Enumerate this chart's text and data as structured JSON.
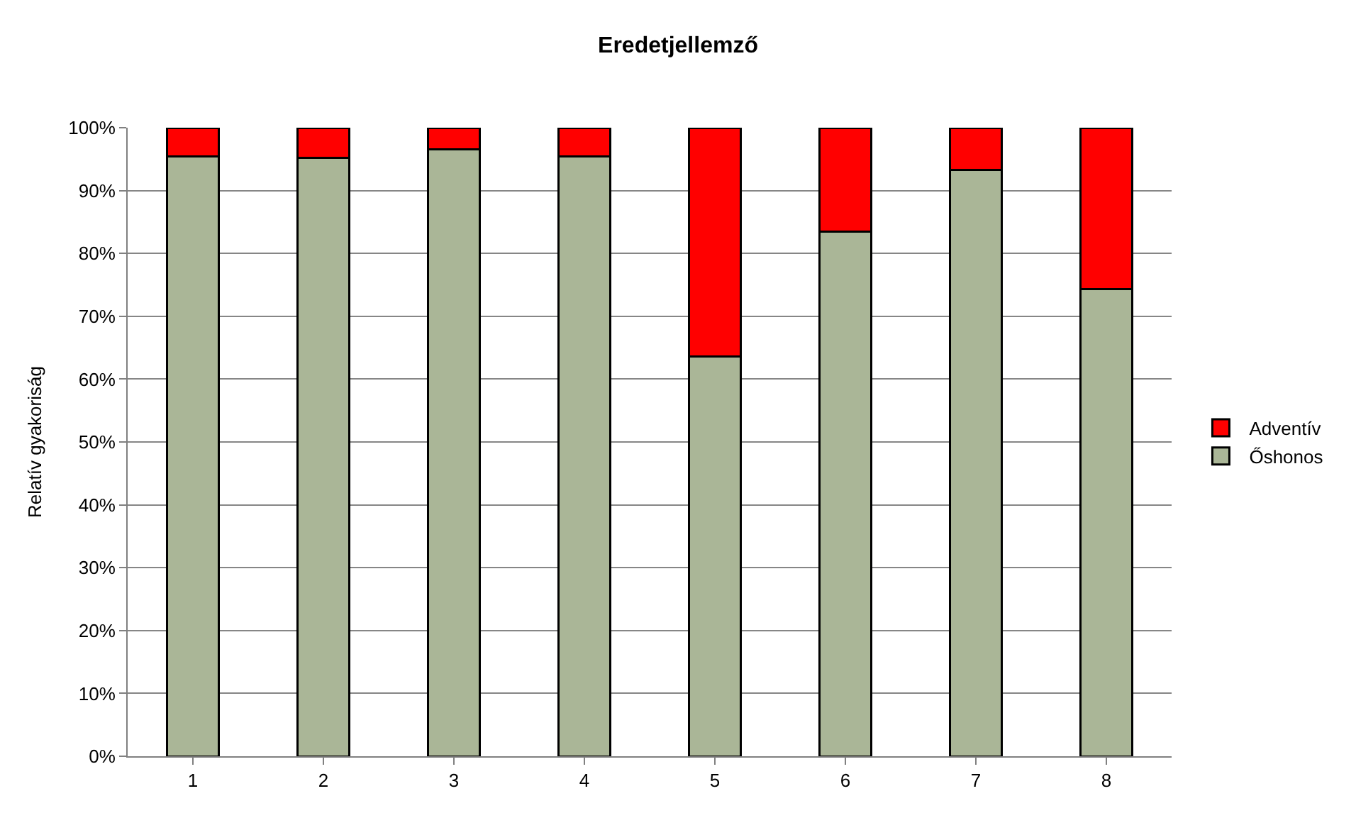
{
  "chart_data": {
    "type": "bar",
    "title": "Eredetjellemző",
    "ylabel": "Relatív gyakoriság",
    "categories": [
      "1",
      "2",
      "3",
      "4",
      "5",
      "6",
      "7",
      "8"
    ],
    "series": [
      {
        "name": "Őshonos",
        "color": "#aab697",
        "values": [
          95.4,
          95.2,
          96.6,
          95.4,
          63.6,
          83.5,
          93.3,
          74.3
        ]
      },
      {
        "name": "Adventív",
        "color": "#ff0000",
        "values": [
          4.6,
          4.8,
          3.4,
          4.6,
          36.4,
          16.5,
          6.7,
          25.7
        ]
      }
    ],
    "stacked": true,
    "ylim": [
      0,
      100
    ],
    "yticks": [
      {
        "value": 0,
        "label": "0%"
      },
      {
        "value": 10,
        "label": "10%"
      },
      {
        "value": 20,
        "label": "20%"
      },
      {
        "value": 30,
        "label": "30%"
      },
      {
        "value": 40,
        "label": "40%"
      },
      {
        "value": 50,
        "label": "50%"
      },
      {
        "value": 60,
        "label": "60%"
      },
      {
        "value": 70,
        "label": "70%"
      },
      {
        "value": 80,
        "label": "80%"
      },
      {
        "value": 90,
        "label": "90%"
      },
      {
        "value": 100,
        "label": "100%"
      }
    ],
    "grid": "y",
    "legend": "right"
  }
}
